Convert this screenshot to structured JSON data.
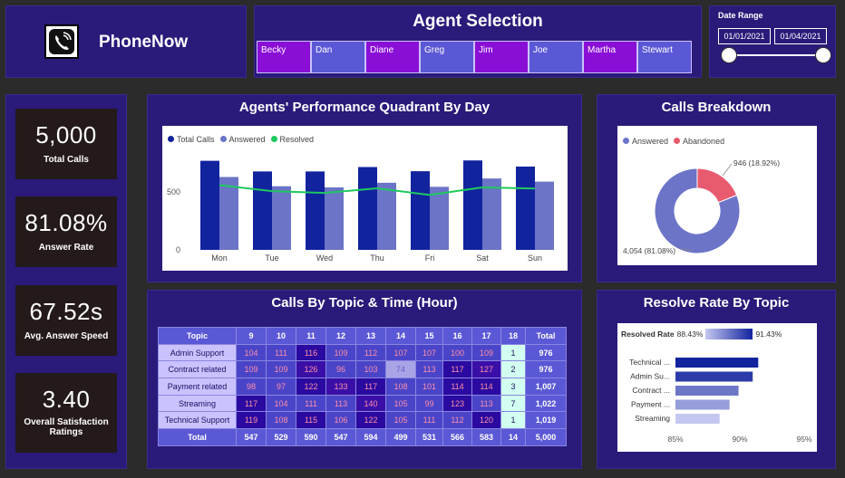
{
  "app": {
    "name": "PhoneNow",
    "logo_icon": "phone-icon"
  },
  "agent_selection": {
    "title": "Agent Selection",
    "agents": [
      {
        "name": "Becky",
        "selected": true
      },
      {
        "name": "Dan",
        "selected": false
      },
      {
        "name": "Diane",
        "selected": true
      },
      {
        "name": "Greg",
        "selected": false
      },
      {
        "name": "Jim",
        "selected": true
      },
      {
        "name": "Joe",
        "selected": false
      },
      {
        "name": "Martha",
        "selected": true
      },
      {
        "name": "Stewart",
        "selected": false
      }
    ]
  },
  "date_range": {
    "label": "Date Range",
    "start": "01/01/2021",
    "end": "01/04/2021",
    "slider_start": 0,
    "slider_end": 1
  },
  "kpis": [
    {
      "value": "5,000",
      "label": "Total Calls"
    },
    {
      "value": "81.08%",
      "label": "Answer Rate"
    },
    {
      "value": "67.52s",
      "label": "Avg. Answer Speed"
    },
    {
      "value": "3.40",
      "label": "Overall Satisfaction Ratings"
    }
  ],
  "performance": {
    "title": "Agents' Performance Quadrant By Day",
    "legend": [
      "Total Calls",
      "Answered",
      "Resolved"
    ],
    "colors": {
      "total": "#12239e",
      "answered": "#6b74c7",
      "resolved": "#1ec95d"
    },
    "chart_data": {
      "type": "bar",
      "categories": [
        "Mon",
        "Tue",
        "Wed",
        "Thu",
        "Fri",
        "Sat",
        "Sun"
      ],
      "series": [
        {
          "name": "Total Calls",
          "values": [
            770,
            678,
            678,
            716,
            680,
            773,
            720
          ]
        },
        {
          "name": "Answered",
          "values": [
            630,
            550,
            540,
            580,
            545,
            617,
            590
          ]
        },
        {
          "name": "Resolved",
          "values": [
            560,
            508,
            492,
            532,
            475,
            540,
            530
          ]
        }
      ],
      "yticks": [
        0,
        500
      ],
      "ylim": [
        0,
        900
      ]
    }
  },
  "breakdown": {
    "title": "Calls Breakdown",
    "legend": [
      "Answered",
      "Abandoned"
    ],
    "colors": {
      "answered": "#6b74c7",
      "abandoned": "#e85a6e"
    },
    "chart_data": {
      "type": "pie",
      "labels": [
        "Answered",
        "Abandoned"
      ],
      "values": [
        4054,
        946
      ],
      "percents": [
        81.08,
        18.92
      ],
      "data_labels": [
        "4,054 (81.08%)",
        "946 (18.92%)"
      ]
    }
  },
  "topics": {
    "title": "Calls By Topic & Time (Hour)",
    "headers": [
      "Topic",
      "9",
      "10",
      "11",
      "12",
      "13",
      "14",
      "15",
      "16",
      "17",
      "18",
      "Total"
    ],
    "rows": [
      {
        "topic": "Admin Support",
        "values": [
          "104",
          "111",
          "116",
          "109",
          "112",
          "107",
          "107",
          "100",
          "109",
          "1"
        ],
        "total": "976"
      },
      {
        "topic": "Contract related",
        "values": [
          "109",
          "109",
          "126",
          "96",
          "103",
          "74",
          "113",
          "117",
          "127",
          "2"
        ],
        "total": "976"
      },
      {
        "topic": "Payment related",
        "values": [
          "98",
          "97",
          "122",
          "133",
          "117",
          "108",
          "101",
          "114",
          "114",
          "3"
        ],
        "total": "1,007"
      },
      {
        "topic": "Streaming",
        "values": [
          "117",
          "104",
          "111",
          "113",
          "140",
          "105",
          "99",
          "123",
          "113",
          "7"
        ],
        "total": "1,022"
      },
      {
        "topic": "Technical Support",
        "values": [
          "119",
          "108",
          "115",
          "106",
          "122",
          "105",
          "111",
          "112",
          "120",
          "1"
        ],
        "total": "1,019"
      }
    ],
    "total_row": {
      "label": "Total",
      "values": [
        "547",
        "529",
        "590",
        "547",
        "594",
        "499",
        "531",
        "566",
        "583",
        "14"
      ],
      "total": "5,000"
    }
  },
  "resolve": {
    "title": "Resolve Rate By Topic",
    "legend_label": "Resolved Rate",
    "legend_min": "88.43%",
    "legend_max": "91.43%",
    "chart_data": {
      "type": "bar",
      "orientation": "horizontal",
      "categories": [
        "Technical ...",
        "Admin Su...",
        "Contract ...",
        "Payment ...",
        "Streaming"
      ],
      "values": [
        91.43,
        91.0,
        89.9,
        89.2,
        88.43
      ],
      "xticks": [
        "85%",
        "90%",
        "95%"
      ],
      "xlim": [
        85,
        95
      ]
    }
  }
}
